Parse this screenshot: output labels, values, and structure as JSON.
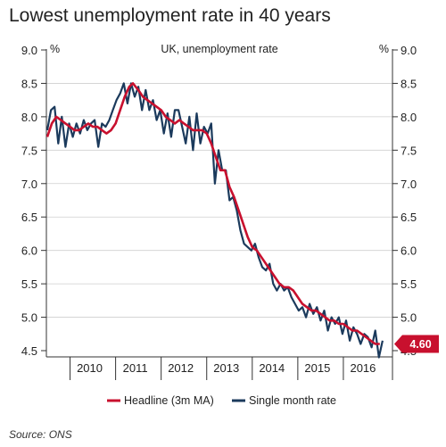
{
  "title": "Lowest unemployment rate in 40 years",
  "source": "Source: ONS",
  "colors": {
    "headline": "#c8102e",
    "single": "#1b3a5c",
    "axis": "#333333",
    "grid": "#cfcfcf"
  },
  "chart_data": {
    "type": "line",
    "title": "Lowest unemployment rate in 40 years",
    "subtitle": "UK, unemployment rate",
    "ylabel_left": "%",
    "ylabel_right": "%",
    "ylim": [
      4.5,
      9.0
    ],
    "yticks": [
      4.5,
      5.0,
      5.5,
      6.0,
      6.5,
      7.0,
      7.5,
      8.0,
      8.5,
      9.0
    ],
    "ytick_labels": [
      "4.5",
      "5.0",
      "5.5",
      "6.0",
      "6.5",
      "7.0",
      "7.5",
      "8.0",
      "8.5",
      "9.0"
    ],
    "xlim": [
      2009.5,
      2017.0
    ],
    "xtick_labels": [
      {
        "label": "2010",
        "x": 2010.0
      },
      {
        "label": "2011",
        "x": 2011.0
      },
      {
        "label": "2012",
        "x": 2012.0
      },
      {
        "label": "2013",
        "x": 2013.0
      },
      {
        "label": "2014",
        "x": 2014.0
      },
      {
        "label": "2015",
        "x": 2015.0
      },
      {
        "label": "2016",
        "x": 2016.0
      }
    ],
    "grid": true,
    "legend_position": "bottom",
    "callout": {
      "label": "4.60",
      "value": 4.6
    },
    "series": [
      {
        "name": "Headline (3m MA)",
        "points": [
          [
            2009.5,
            7.7
          ],
          [
            2009.6,
            7.9
          ],
          [
            2009.7,
            8.0
          ],
          [
            2009.8,
            7.95
          ],
          [
            2009.9,
            7.9
          ],
          [
            2010.0,
            7.85
          ],
          [
            2010.1,
            7.8
          ],
          [
            2010.2,
            7.8
          ],
          [
            2010.3,
            7.85
          ],
          [
            2010.4,
            7.9
          ],
          [
            2010.5,
            7.85
          ],
          [
            2010.6,
            7.85
          ],
          [
            2010.7,
            7.8
          ],
          [
            2010.8,
            7.75
          ],
          [
            2010.9,
            7.8
          ],
          [
            2011.0,
            7.9
          ],
          [
            2011.1,
            8.1
          ],
          [
            2011.2,
            8.3
          ],
          [
            2011.3,
            8.45
          ],
          [
            2011.38,
            8.5
          ],
          [
            2011.5,
            8.4
          ],
          [
            2011.6,
            8.3
          ],
          [
            2011.7,
            8.25
          ],
          [
            2011.8,
            8.2
          ],
          [
            2011.9,
            8.15
          ],
          [
            2012.0,
            8.1
          ],
          [
            2012.1,
            8.0
          ],
          [
            2012.2,
            7.95
          ],
          [
            2012.3,
            7.9
          ],
          [
            2012.4,
            7.95
          ],
          [
            2012.5,
            7.9
          ],
          [
            2012.6,
            7.85
          ],
          [
            2012.7,
            7.8
          ],
          [
            2012.8,
            7.8
          ],
          [
            2012.9,
            7.8
          ],
          [
            2013.0,
            7.75
          ],
          [
            2013.1,
            7.6
          ],
          [
            2013.2,
            7.4
          ],
          [
            2013.3,
            7.2
          ],
          [
            2013.4,
            7.2
          ],
          [
            2013.5,
            6.95
          ],
          [
            2013.6,
            6.8
          ],
          [
            2013.7,
            6.6
          ],
          [
            2013.8,
            6.4
          ],
          [
            2013.9,
            6.2
          ],
          [
            2014.0,
            6.05
          ],
          [
            2014.1,
            6.0
          ],
          [
            2014.2,
            5.9
          ],
          [
            2014.3,
            5.8
          ],
          [
            2014.4,
            5.7
          ],
          [
            2014.5,
            5.6
          ],
          [
            2014.6,
            5.5
          ],
          [
            2014.7,
            5.45
          ],
          [
            2014.8,
            5.45
          ],
          [
            2014.9,
            5.4
          ],
          [
            2015.0,
            5.3
          ],
          [
            2015.1,
            5.2
          ],
          [
            2015.2,
            5.15
          ],
          [
            2015.3,
            5.1
          ],
          [
            2015.4,
            5.1
          ],
          [
            2015.5,
            5.05
          ],
          [
            2015.6,
            5.0
          ],
          [
            2015.7,
            4.95
          ],
          [
            2015.8,
            4.95
          ],
          [
            2015.9,
            4.9
          ],
          [
            2016.0,
            4.9
          ],
          [
            2016.1,
            4.85
          ],
          [
            2016.2,
            4.8
          ],
          [
            2016.3,
            4.8
          ],
          [
            2016.4,
            4.75
          ],
          [
            2016.5,
            4.7
          ],
          [
            2016.6,
            4.65
          ],
          [
            2016.7,
            4.6
          ],
          [
            2016.8,
            4.6
          ]
        ]
      },
      {
        "name": "Single month rate",
        "points": [
          [
            2009.5,
            7.8
          ],
          [
            2009.58,
            8.1
          ],
          [
            2009.66,
            8.15
          ],
          [
            2009.74,
            7.6
          ],
          [
            2009.82,
            8.0
          ],
          [
            2009.9,
            7.55
          ],
          [
            2009.98,
            7.9
          ],
          [
            2010.06,
            7.7
          ],
          [
            2010.14,
            7.9
          ],
          [
            2010.22,
            7.75
          ],
          [
            2010.3,
            7.95
          ],
          [
            2010.38,
            7.8
          ],
          [
            2010.46,
            7.9
          ],
          [
            2010.54,
            7.95
          ],
          [
            2010.62,
            7.55
          ],
          [
            2010.7,
            7.9
          ],
          [
            2010.78,
            7.85
          ],
          [
            2010.86,
            7.95
          ],
          [
            2010.94,
            8.1
          ],
          [
            2011.02,
            8.25
          ],
          [
            2011.1,
            8.35
          ],
          [
            2011.18,
            8.5
          ],
          [
            2011.26,
            8.2
          ],
          [
            2011.34,
            8.5
          ],
          [
            2011.42,
            8.3
          ],
          [
            2011.5,
            8.45
          ],
          [
            2011.58,
            8.1
          ],
          [
            2011.66,
            8.4
          ],
          [
            2011.74,
            8.1
          ],
          [
            2011.82,
            8.25
          ],
          [
            2011.9,
            7.95
          ],
          [
            2011.98,
            8.1
          ],
          [
            2012.06,
            7.75
          ],
          [
            2012.14,
            8.05
          ],
          [
            2012.22,
            7.7
          ],
          [
            2012.3,
            8.1
          ],
          [
            2012.38,
            8.1
          ],
          [
            2012.46,
            7.85
          ],
          [
            2012.54,
            7.6
          ],
          [
            2012.62,
            8.0
          ],
          [
            2012.7,
            7.5
          ],
          [
            2012.78,
            8.05
          ],
          [
            2012.86,
            7.6
          ],
          [
            2012.94,
            7.85
          ],
          [
            2013.02,
            7.75
          ],
          [
            2013.1,
            7.9
          ],
          [
            2013.18,
            7.0
          ],
          [
            2013.26,
            7.5
          ],
          [
            2013.34,
            7.2
          ],
          [
            2013.42,
            7.2
          ],
          [
            2013.5,
            6.75
          ],
          [
            2013.58,
            6.8
          ],
          [
            2013.66,
            6.6
          ],
          [
            2013.74,
            6.3
          ],
          [
            2013.82,
            6.1
          ],
          [
            2013.9,
            6.05
          ],
          [
            2013.98,
            6.0
          ],
          [
            2014.06,
            6.1
          ],
          [
            2014.14,
            5.9
          ],
          [
            2014.22,
            5.75
          ],
          [
            2014.3,
            5.7
          ],
          [
            2014.38,
            5.8
          ],
          [
            2014.46,
            5.5
          ],
          [
            2014.54,
            5.4
          ],
          [
            2014.62,
            5.5
          ],
          [
            2014.7,
            5.4
          ],
          [
            2014.78,
            5.45
          ],
          [
            2014.86,
            5.3
          ],
          [
            2014.94,
            5.2
          ],
          [
            2015.02,
            5.1
          ],
          [
            2015.1,
            5.15
          ],
          [
            2015.18,
            5.0
          ],
          [
            2015.26,
            5.2
          ],
          [
            2015.34,
            5.05
          ],
          [
            2015.42,
            5.15
          ],
          [
            2015.5,
            4.95
          ],
          [
            2015.58,
            5.1
          ],
          [
            2015.66,
            4.8
          ],
          [
            2015.74,
            5.0
          ],
          [
            2015.82,
            4.9
          ],
          [
            2015.9,
            5.0
          ],
          [
            2015.98,
            4.75
          ],
          [
            2016.06,
            4.95
          ],
          [
            2016.14,
            4.65
          ],
          [
            2016.22,
            4.85
          ],
          [
            2016.3,
            4.75
          ],
          [
            2016.38,
            4.6
          ],
          [
            2016.46,
            4.75
          ],
          [
            2016.54,
            4.7
          ],
          [
            2016.62,
            4.55
          ],
          [
            2016.7,
            4.8
          ],
          [
            2016.78,
            4.4
          ],
          [
            2016.86,
            4.65
          ]
        ]
      }
    ]
  }
}
